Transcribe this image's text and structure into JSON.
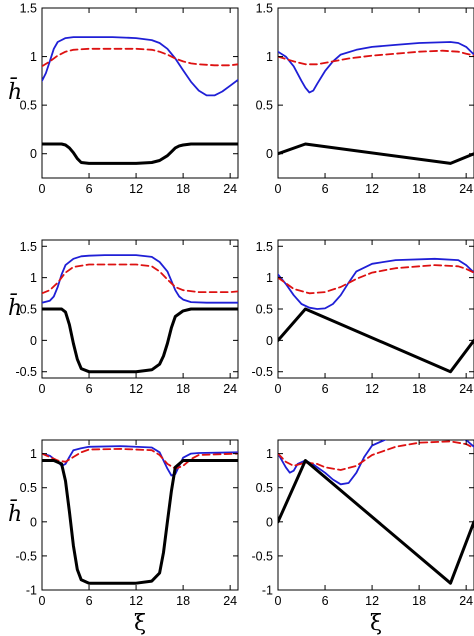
{
  "figure": {
    "ylabel_text": "h̄",
    "xlabel_text": "ξ"
  },
  "colors": {
    "solid_black": "#000000",
    "blue": "#1f1fd6",
    "red_dashed": "#dd1111"
  },
  "chart_data": [
    {
      "type": "line",
      "xlim": [
        0,
        25
      ],
      "ylim": [
        -0.25,
        1.5
      ],
      "xticks": [
        "0",
        "6",
        "12",
        "18",
        "24"
      ],
      "yticks": [
        "0",
        "0.5",
        "1",
        "1.5"
      ],
      "ytick_values": [
        0,
        0.5,
        1,
        1.5
      ],
      "ylabel": "h̄",
      "xlabel": "",
      "series": [
        {
          "color": "blue",
          "style": "solid",
          "x": [
            0,
            0.5,
            1,
            1.5,
            2,
            3,
            4,
            6,
            9,
            12,
            14,
            15,
            16,
            17,
            18,
            19,
            20,
            21,
            22,
            23,
            24,
            25
          ],
          "y": [
            0.75,
            0.83,
            0.95,
            1.08,
            1.15,
            1.19,
            1.2,
            1.2,
            1.2,
            1.19,
            1.17,
            1.14,
            1.08,
            0.98,
            0.86,
            0.74,
            0.65,
            0.6,
            0.6,
            0.64,
            0.7,
            0.76
          ]
        },
        {
          "color": "red_dashed",
          "style": "dashed",
          "x": [
            0,
            1,
            2,
            3,
            4,
            6,
            12,
            14,
            15,
            16,
            17,
            18,
            19,
            20,
            22,
            24,
            25
          ],
          "y": [
            0.9,
            0.95,
            1.01,
            1.05,
            1.07,
            1.08,
            1.08,
            1.07,
            1.05,
            1.02,
            0.98,
            0.95,
            0.93,
            0.92,
            0.91,
            0.91,
            0.92
          ]
        },
        {
          "color": "solid_black",
          "style": "thick",
          "x": [
            0,
            2.5,
            3,
            3.5,
            4,
            4.5,
            5,
            6,
            12,
            14,
            15,
            16,
            16.5,
            17,
            17.5,
            18,
            19,
            25
          ],
          "y": [
            0.1,
            0.1,
            0.09,
            0.06,
            0.01,
            -0.05,
            -0.09,
            -0.1,
            -0.1,
            -0.09,
            -0.07,
            -0.02,
            0.02,
            0.06,
            0.08,
            0.09,
            0.1,
            0.1
          ]
        }
      ]
    },
    {
      "type": "line",
      "xlim": [
        0,
        25
      ],
      "ylim": [
        -0.25,
        1.5
      ],
      "xticks": [
        "0",
        "6",
        "12",
        "18",
        "24"
      ],
      "yticks": [
        "0",
        "0.5",
        "1",
        "1.5"
      ],
      "ytick_values": [
        0,
        0.5,
        1,
        1.5
      ],
      "ylabel": "",
      "xlabel": "",
      "series": [
        {
          "color": "blue",
          "style": "solid",
          "x": [
            0,
            1,
            2,
            3,
            3.5,
            4,
            4.5,
            5,
            6,
            7,
            8,
            10,
            12,
            15,
            18,
            22,
            23,
            24,
            25
          ],
          "y": [
            1.05,
            1.0,
            0.9,
            0.75,
            0.68,
            0.63,
            0.65,
            0.72,
            0.85,
            0.95,
            1.02,
            1.07,
            1.1,
            1.12,
            1.14,
            1.15,
            1.14,
            1.1,
            1.02
          ]
        },
        {
          "color": "red_dashed",
          "style": "dashed",
          "x": [
            0,
            2,
            3.5,
            5,
            7,
            9,
            12,
            15,
            18,
            21,
            23,
            24,
            25
          ],
          "y": [
            1.0,
            0.95,
            0.92,
            0.92,
            0.95,
            0.98,
            1.01,
            1.03,
            1.05,
            1.06,
            1.05,
            1.03,
            1.01
          ]
        },
        {
          "color": "solid_black",
          "style": "thick",
          "x": [
            0,
            3.5,
            22,
            25
          ],
          "y": [
            0,
            0.1,
            -0.1,
            0
          ]
        }
      ]
    },
    {
      "type": "line",
      "xlim": [
        0,
        25
      ],
      "ylim": [
        -0.6,
        1.6
      ],
      "xticks": [
        "0",
        "6",
        "12",
        "18",
        "24"
      ],
      "yticks": [
        "-0.5",
        "0",
        "0.5",
        "1",
        "1.5"
      ],
      "ytick_values": [
        -0.5,
        0,
        0.5,
        1,
        1.5
      ],
      "ylabel": "h̄",
      "xlabel": "",
      "series": [
        {
          "color": "blue",
          "style": "solid",
          "x": [
            0,
            1,
            1.5,
            2,
            2.5,
            3,
            4,
            5,
            6,
            8,
            12,
            14,
            15,
            16,
            16.5,
            17,
            17.5,
            18,
            19,
            21,
            24,
            25
          ],
          "y": [
            0.6,
            0.63,
            0.7,
            0.85,
            1.05,
            1.2,
            1.3,
            1.34,
            1.35,
            1.36,
            1.36,
            1.33,
            1.25,
            1.1,
            0.95,
            0.8,
            0.7,
            0.65,
            0.61,
            0.6,
            0.6,
            0.6
          ]
        },
        {
          "color": "red_dashed",
          "style": "dashed",
          "x": [
            0,
            1,
            2,
            3,
            4,
            6,
            12,
            14,
            15,
            16,
            17,
            18,
            20,
            24,
            25
          ],
          "y": [
            0.75,
            0.8,
            0.92,
            1.08,
            1.17,
            1.21,
            1.21,
            1.18,
            1.1,
            0.97,
            0.85,
            0.8,
            0.77,
            0.77,
            0.78
          ]
        },
        {
          "color": "solid_black",
          "style": "thick",
          "x": [
            0,
            2.5,
            3,
            3.5,
            4,
            4.5,
            5,
            6,
            12,
            14,
            15,
            15.5,
            16,
            16.5,
            17,
            18,
            19,
            25
          ],
          "y": [
            0.5,
            0.5,
            0.45,
            0.25,
            -0.05,
            -0.3,
            -0.45,
            -0.5,
            -0.5,
            -0.47,
            -0.38,
            -0.25,
            -0.05,
            0.2,
            0.38,
            0.47,
            0.5,
            0.5
          ]
        }
      ]
    },
    {
      "type": "line",
      "xlim": [
        0,
        25
      ],
      "ylim": [
        -0.6,
        1.6
      ],
      "xticks": [
        "0",
        "6",
        "12",
        "18",
        "24"
      ],
      "yticks": [
        "-0.5",
        "0",
        "0.5",
        "1",
        "1.5"
      ],
      "ytick_values": [
        -0.5,
        0,
        0.5,
        1,
        1.5
      ],
      "ylabel": "",
      "xlabel": "",
      "series": [
        {
          "color": "blue",
          "style": "solid",
          "x": [
            0,
            1,
            2,
            3,
            4,
            5,
            6,
            7,
            8,
            9,
            10,
            12,
            15,
            20,
            23,
            24,
            25
          ],
          "y": [
            1.05,
            0.9,
            0.72,
            0.58,
            0.52,
            0.5,
            0.51,
            0.58,
            0.72,
            0.92,
            1.1,
            1.22,
            1.28,
            1.3,
            1.28,
            1.2,
            1.08
          ]
        },
        {
          "color": "red_dashed",
          "style": "dashed",
          "x": [
            0,
            2,
            4,
            6,
            8,
            10,
            12,
            15,
            20,
            23,
            24,
            25
          ],
          "y": [
            1.0,
            0.82,
            0.75,
            0.77,
            0.85,
            0.98,
            1.08,
            1.15,
            1.2,
            1.18,
            1.14,
            1.08
          ]
        },
        {
          "color": "solid_black",
          "style": "thick",
          "x": [
            0,
            3.5,
            22,
            25
          ],
          "y": [
            0,
            0.5,
            -0.5,
            0
          ]
        }
      ]
    },
    {
      "type": "line",
      "xlim": [
        0,
        25
      ],
      "ylim": [
        -1,
        1.2
      ],
      "xticks": [
        "0",
        "6",
        "12",
        "18",
        "24"
      ],
      "yticks": [
        "-1",
        "-0.5",
        "0",
        "0.5",
        "1"
      ],
      "ytick_values": [
        -1,
        -0.5,
        0,
        0.5,
        1
      ],
      "ylabel": "h̄",
      "xlabel": "ξ",
      "series": [
        {
          "color": "blue",
          "style": "solid",
          "x": [
            0,
            1,
            2,
            2.5,
            3,
            3.5,
            4,
            5,
            6,
            10,
            14,
            15,
            15.5,
            16,
            16.5,
            17,
            17.5,
            18,
            19,
            20,
            25
          ],
          "y": [
            1.0,
            0.97,
            0.88,
            0.82,
            0.85,
            0.95,
            1.05,
            1.08,
            1.1,
            1.11,
            1.09,
            1.02,
            0.9,
            0.78,
            0.68,
            0.7,
            0.82,
            0.94,
            1.0,
            1.01,
            1.02
          ]
        },
        {
          "color": "red_dashed",
          "style": "dashed",
          "x": [
            0,
            1,
            2,
            3,
            4,
            5,
            6,
            10,
            14,
            15,
            16,
            17,
            18,
            19,
            20,
            25
          ],
          "y": [
            1.0,
            0.95,
            0.9,
            0.88,
            0.95,
            1.02,
            1.06,
            1.07,
            1.05,
            0.98,
            0.85,
            0.78,
            0.82,
            0.92,
            0.98,
            1.0
          ]
        },
        {
          "color": "solid_black",
          "style": "thick",
          "x": [
            0,
            1.5,
            2.5,
            3,
            3.5,
            4,
            4.5,
            5,
            6,
            12,
            14,
            15,
            15.5,
            16,
            16.5,
            17,
            18,
            25
          ],
          "y": [
            0.9,
            0.9,
            0.85,
            0.6,
            0.15,
            -0.35,
            -0.7,
            -0.85,
            -0.9,
            -0.9,
            -0.87,
            -0.75,
            -0.45,
            0.0,
            0.45,
            0.8,
            0.9,
            0.9
          ]
        }
      ]
    },
    {
      "type": "line",
      "xlim": [
        0,
        25
      ],
      "ylim": [
        -1,
        1.2
      ],
      "xticks": [
        "0",
        "6",
        "12",
        "18",
        "24"
      ],
      "yticks": [
        "-1",
        "-0.5",
        "0",
        "0.5",
        "1"
      ],
      "ytick_values": [
        -1,
        -0.5,
        0,
        0.5,
        1
      ],
      "ylabel": "",
      "xlabel": "ξ",
      "series": [
        {
          "color": "blue",
          "style": "solid",
          "x": [
            0,
            1,
            1.5,
            2,
            2.5,
            3.5,
            4.5,
            6,
            7,
            8,
            9,
            10,
            11,
            12,
            14,
            18,
            22,
            24,
            25
          ],
          "y": [
            1.0,
            0.8,
            0.72,
            0.75,
            0.85,
            0.9,
            0.84,
            0.72,
            0.62,
            0.55,
            0.57,
            0.72,
            0.95,
            1.12,
            1.22,
            1.26,
            1.26,
            1.2,
            1.1
          ]
        },
        {
          "color": "red_dashed",
          "style": "dashed",
          "x": [
            0,
            1,
            2,
            3.5,
            5,
            6,
            8,
            10,
            12,
            15,
            18,
            22,
            24,
            25
          ],
          "y": [
            1.0,
            0.88,
            0.82,
            0.87,
            0.85,
            0.8,
            0.76,
            0.82,
            0.98,
            1.1,
            1.16,
            1.18,
            1.14,
            1.08
          ]
        },
        {
          "color": "solid_black",
          "style": "thick",
          "x": [
            0,
            3.5,
            22,
            25
          ],
          "y": [
            0,
            0.9,
            -0.9,
            0
          ]
        }
      ]
    }
  ]
}
